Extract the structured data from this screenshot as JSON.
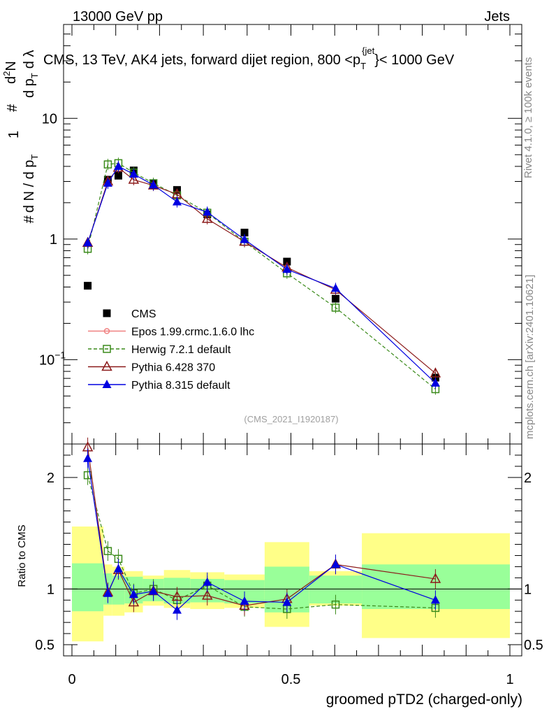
{
  "header": {
    "beam": "13000 GeV pp",
    "category": "Jets"
  },
  "title": {
    "main": "CMS, 13 TeV, AK4 jets, forward dijet region, 800 <p",
    "sub": "T",
    "sup": "{jet",
    "suffix": "}< 1000 GeV"
  },
  "side_labels": {
    "rivet": "Rivet 4.1.0, ≥ 100k events",
    "mcplots": "mcplots.cern.ch [arXiv:2401.10621]"
  },
  "ylabel_parts": {
    "hash": "#",
    "num_1": "1",
    "dN": "d N / d p",
    "T": "T",
    "d2N": "d",
    "two": "2",
    "N": "N",
    "dp": "d p",
    "dlambda": "d λ"
  },
  "analysis_id": "(CMS_2021_I1920187)",
  "ratio_ylabel": "Ratio to CMS",
  "xlabel": "groomed pTD2 (charged-only)",
  "colors": {
    "cms": "#000000",
    "epos": "#f08080",
    "herwig": "#3a8a1a",
    "pythia6": "#8b1a1a",
    "pythia8": "#0000e0",
    "band_inner": "#99ff99",
    "band_outer": "#ffff88"
  },
  "chart_data": {
    "type": "scatter",
    "x_axis": {
      "range": [
        0,
        1
      ],
      "ticks": [
        "0",
        "0.5",
        "1"
      ],
      "tick_values": [
        0,
        0.5,
        1
      ]
    },
    "main_y_axis": {
      "scale": "log",
      "range": [
        0.02,
        60
      ],
      "tick_labels": [
        {
          "value": 10,
          "base": "10",
          "exp": ""
        },
        {
          "value": 1,
          "base": "1",
          "exp": ""
        },
        {
          "value": 0.1,
          "base": "10",
          "exp": "−1"
        }
      ]
    },
    "ratio_y_axis": {
      "range": [
        0.4,
        2.3
      ],
      "ticks": [
        "0.5",
        "1",
        "2"
      ],
      "tick_values": [
        0.5,
        1,
        2
      ]
    },
    "x": [
      0.036,
      0.082,
      0.106,
      0.141,
      0.186,
      0.24,
      0.309,
      0.394,
      0.491,
      0.602,
      0.83
    ],
    "x_edges": [
      0.0,
      0.072,
      0.092,
      0.12,
      0.162,
      0.21,
      0.27,
      0.348,
      0.44,
      0.542,
      0.662,
      1.0
    ],
    "series": [
      {
        "name": "CMS",
        "key": "cms",
        "values": [
          0.41,
          3.1,
          3.35,
          3.7,
          2.9,
          2.55,
          1.6,
          1.13,
          0.65,
          0.32,
          0.071
        ]
      },
      {
        "name": "Epos 1.99.crmc.1.6.0 lhc",
        "key": "epos",
        "values": []
      },
      {
        "name": "Herwig 7.2.1 default",
        "key": "herwig",
        "values": [
          0.83,
          4.15,
          4.25,
          3.55,
          2.9,
          2.3,
          1.65,
          0.95,
          0.52,
          0.27,
          0.057
        ],
        "ratio": [
          2.02,
          1.34,
          1.27,
          0.96,
          1.0,
          0.9,
          1.03,
          0.84,
          0.82,
          0.86,
          0.83
        ]
      },
      {
        "name": "Pythia 6.428 370",
        "key": "pythia6",
        "values": [
          0.93,
          3.0,
          3.9,
          3.1,
          2.78,
          2.35,
          1.47,
          0.95,
          0.58,
          0.38,
          0.077
        ],
        "ratio": [
          2.27,
          0.97,
          1.17,
          0.88,
          0.98,
          0.93,
          0.94,
          0.85,
          0.91,
          1.22,
          1.09
        ]
      },
      {
        "name": "Pythia 8.315 default",
        "key": "pythia8",
        "values": [
          0.93,
          2.9,
          4.0,
          3.45,
          2.8,
          2.03,
          1.67,
          0.99,
          0.56,
          0.39,
          0.064
        ],
        "ratio": [
          2.17,
          0.96,
          1.18,
          0.95,
          0.98,
          0.81,
          1.06,
          0.89,
          0.88,
          1.22,
          0.9
        ]
      }
    ],
    "uncertainty_bands": {
      "inner_low": [
        0.8,
        0.86,
        0.86,
        0.87,
        0.89,
        0.87,
        0.88,
        0.87,
        0.79,
        0.87,
        0.82
      ],
      "inner_high": [
        1.23,
        1.14,
        1.12,
        1.11,
        1.09,
        1.1,
        1.09,
        1.08,
        1.2,
        1.12,
        1.22
      ],
      "outer_low": [
        0.53,
        0.76,
        0.76,
        0.79,
        0.85,
        0.83,
        0.82,
        0.83,
        0.66,
        0.85,
        0.56
      ],
      "outer_high": [
        1.56,
        1.22,
        1.2,
        1.16,
        1.12,
        1.17,
        1.15,
        1.13,
        1.42,
        1.16,
        1.5
      ]
    }
  }
}
